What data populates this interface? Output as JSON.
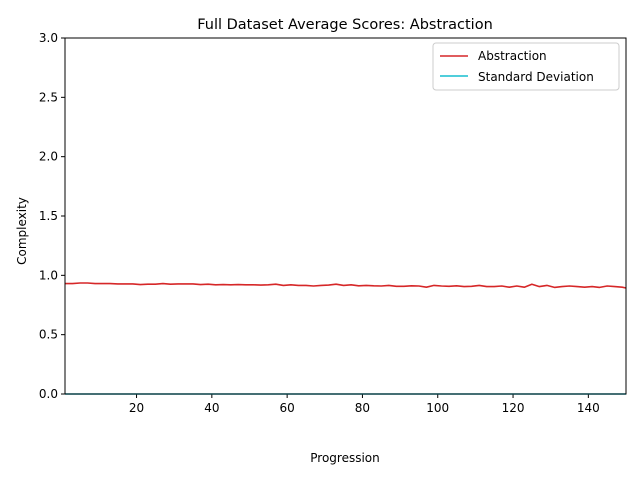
{
  "chart_data": {
    "type": "line",
    "title": "Full Dataset Average Scores: Abstraction",
    "xlabel": "Progression",
    "ylabel": "Complexity",
    "xlim": [
      1,
      150
    ],
    "ylim": [
      0,
      3.0
    ],
    "xticks": [
      20,
      40,
      60,
      80,
      100,
      120,
      140
    ],
    "xtick_labels": [
      "20",
      "40",
      "60",
      "80",
      "100",
      "120",
      "140"
    ],
    "yticks": [
      0,
      0.5,
      1.0,
      1.5,
      2.0,
      2.5,
      3.0
    ],
    "ytick_labels": [
      "0.0",
      "0.5",
      "1.0",
      "1.5",
      "2.0",
      "2.5",
      "3.0"
    ],
    "grid": false,
    "legend_position": "upper right",
    "series": [
      {
        "name": "Abstraction",
        "color": "#d62728",
        "x": [
          1,
          3,
          5,
          7,
          9,
          11,
          13,
          15,
          17,
          19,
          21,
          23,
          25,
          27,
          29,
          31,
          33,
          35,
          37,
          39,
          41,
          43,
          45,
          47,
          49,
          51,
          53,
          55,
          57,
          59,
          61,
          63,
          65,
          67,
          69,
          71,
          73,
          75,
          77,
          79,
          81,
          83,
          85,
          87,
          89,
          91,
          93,
          95,
          97,
          99,
          101,
          103,
          105,
          107,
          109,
          111,
          113,
          115,
          117,
          119,
          121,
          123,
          125,
          127,
          129,
          131,
          133,
          135,
          137,
          139,
          141,
          143,
          145,
          147,
          149,
          150
        ],
        "y": [
          0.93,
          0.93,
          0.935,
          0.935,
          0.93,
          0.93,
          0.93,
          0.928,
          0.928,
          0.928,
          0.922,
          0.925,
          0.925,
          0.93,
          0.925,
          0.928,
          0.928,
          0.928,
          0.922,
          0.925,
          0.92,
          0.922,
          0.92,
          0.922,
          0.92,
          0.92,
          0.918,
          0.92,
          0.925,
          0.915,
          0.92,
          0.915,
          0.915,
          0.91,
          0.915,
          0.918,
          0.925,
          0.915,
          0.92,
          0.912,
          0.915,
          0.912,
          0.91,
          0.915,
          0.908,
          0.908,
          0.912,
          0.91,
          0.9,
          0.915,
          0.91,
          0.908,
          0.912,
          0.905,
          0.908,
          0.915,
          0.905,
          0.905,
          0.91,
          0.9,
          0.91,
          0.9,
          0.925,
          0.905,
          0.915,
          0.898,
          0.905,
          0.91,
          0.905,
          0.9,
          0.905,
          0.898,
          0.91,
          0.905,
          0.9,
          0.893
        ]
      },
      {
        "name": "Standard Deviation",
        "color": "#17becf",
        "x": [
          1,
          150
        ],
        "y": [
          0.0,
          0.0
        ]
      }
    ]
  }
}
